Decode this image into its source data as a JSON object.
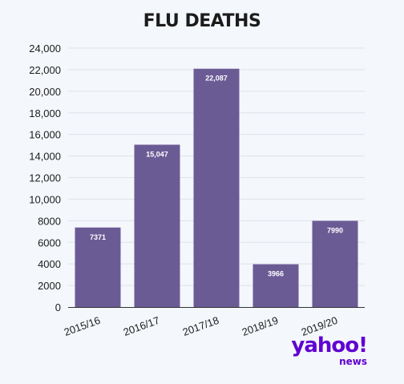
{
  "chart_data": {
    "type": "bar",
    "title": "FLU DEATHS",
    "categories": [
      "2015/16",
      "2016/17",
      "2017/18",
      "2018/19",
      "2019/20"
    ],
    "values": [
      7371,
      15047,
      22087,
      3966,
      7990
    ],
    "data_labels": [
      "7371",
      "15,047",
      "22,087",
      "3966",
      "7990"
    ],
    "ylim": [
      0,
      24000
    ],
    "yticks": [
      0,
      2000,
      4000,
      6000,
      8000,
      10000,
      12000,
      14000,
      16000,
      18000,
      20000,
      22000,
      24000
    ],
    "ytick_labels": [
      "0",
      "2000",
      "4000",
      "6000",
      "8000",
      "10,000",
      "12,000",
      "14,000",
      "16,000",
      "18,000",
      "20,000",
      "22,000",
      "24,000"
    ],
    "xlabel": "",
    "ylabel": "",
    "grid": true,
    "bar_color": "#6b5b95",
    "axis_color": "#333333",
    "grid_color": "#dde3ea",
    "title_color": "#1c1c1c"
  },
  "logo": {
    "brand": "yahoo!",
    "sub": "news",
    "color": "#6001d2"
  }
}
